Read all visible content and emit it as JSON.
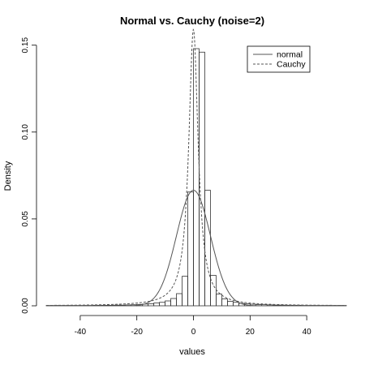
{
  "chart_data": {
    "type": "histogram",
    "title": "Normal vs. Cauchy (noise=2)",
    "xlabel": "values",
    "ylabel": "Density",
    "xlim": [
      -52,
      54
    ],
    "ylim": [
      0,
      0.155
    ],
    "x_ticks": [
      -40,
      -20,
      0,
      20,
      40
    ],
    "x_tick_labels": [
      "-40",
      "-20",
      "0",
      "20",
      "40"
    ],
    "y_ticks": [
      0.0,
      0.05,
      0.1,
      0.15
    ],
    "y_tick_labels": [
      "0.00",
      "0.05",
      "0.10",
      "0.15"
    ],
    "grid": false,
    "legend_position": "top-right",
    "histogram": {
      "bin_edges": [
        -52,
        -50,
        -48,
        -46,
        -44,
        -42,
        -40,
        -38,
        -36,
        -34,
        -32,
        -30,
        -28,
        -26,
        -24,
        -22,
        -20,
        -18,
        -16,
        -14,
        -12,
        -10,
        -8,
        -6,
        -4,
        -2,
        0,
        2,
        4,
        6,
        8,
        10,
        12,
        14,
        16,
        18,
        20,
        22,
        24,
        26,
        28,
        30,
        32,
        34,
        36,
        38,
        40,
        42,
        44,
        46,
        48,
        50,
        52,
        54
      ],
      "densities": [
        0.0002,
        0.0002,
        0.0002,
        0.0002,
        0.0002,
        0.0002,
        0.0002,
        0.0002,
        0.0003,
        0.0003,
        0.0003,
        0.0003,
        0.0004,
        0.0004,
        0.0005,
        0.0006,
        0.0008,
        0.001,
        0.0012,
        0.0016,
        0.002,
        0.0028,
        0.0042,
        0.007,
        0.017,
        0.0655,
        0.148,
        0.146,
        0.0665,
        0.0175,
        0.0068,
        0.004,
        0.0026,
        0.002,
        0.0014,
        0.0011,
        0.0009,
        0.0007,
        0.0006,
        0.0005,
        0.0004,
        0.0004,
        0.0003,
        0.0003,
        0.0003,
        0.0002,
        0.0002,
        0.0002,
        0.0002,
        0.0002,
        0.0002,
        0.0002,
        0.0002
      ]
    },
    "series": [
      {
        "name": "normal",
        "kind": "density-curve",
        "distribution": "normal",
        "mean": 0,
        "sd": 6.0,
        "style": "solid",
        "color": "#555555"
      },
      {
        "name": "Cauchy",
        "kind": "density-curve",
        "distribution": "cauchy",
        "location": 0,
        "scale": 2,
        "style": "dashed",
        "color": "#555555"
      }
    ]
  }
}
